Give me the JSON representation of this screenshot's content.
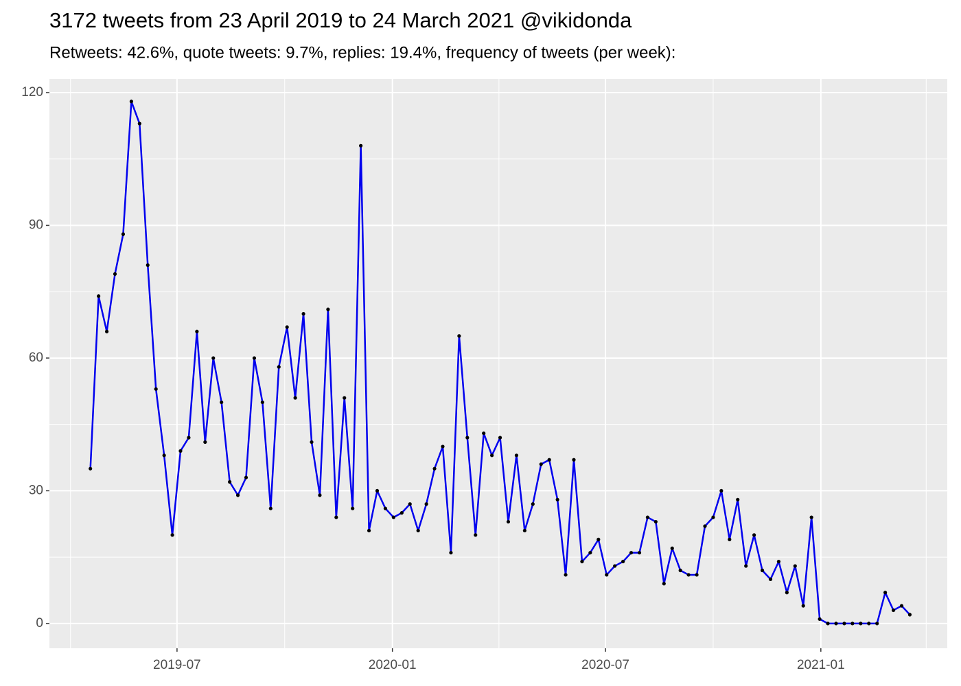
{
  "chart_data": {
    "type": "line",
    "title": "3172 tweets from 23 April 2019 to 24 March 2021 @vikidonda",
    "subtitle": "Retweets: 42.6%, quote tweets: 9.7%, replies: 19.4%, frequency of tweets (per week):",
    "x": [
      "2019-04-18",
      "2019-04-25",
      "2019-05-02",
      "2019-05-09",
      "2019-05-16",
      "2019-05-23",
      "2019-05-30",
      "2019-06-06",
      "2019-06-13",
      "2019-06-20",
      "2019-06-27",
      "2019-07-04",
      "2019-07-11",
      "2019-07-18",
      "2019-07-25",
      "2019-08-01",
      "2019-08-08",
      "2019-08-15",
      "2019-08-22",
      "2019-08-29",
      "2019-09-05",
      "2019-09-12",
      "2019-09-19",
      "2019-09-26",
      "2019-10-03",
      "2019-10-10",
      "2019-10-17",
      "2019-10-24",
      "2019-10-31",
      "2019-11-07",
      "2019-11-14",
      "2019-11-21",
      "2019-11-28",
      "2019-12-05",
      "2019-12-12",
      "2019-12-19",
      "2019-12-26",
      "2020-01-02",
      "2020-01-09",
      "2020-01-16",
      "2020-01-23",
      "2020-01-30",
      "2020-02-06",
      "2020-02-13",
      "2020-02-20",
      "2020-02-27",
      "2020-03-05",
      "2020-03-12",
      "2020-03-19",
      "2020-03-26",
      "2020-04-02",
      "2020-04-09",
      "2020-04-16",
      "2020-04-23",
      "2020-04-30",
      "2020-05-07",
      "2020-05-14",
      "2020-05-21",
      "2020-05-28",
      "2020-06-04",
      "2020-06-11",
      "2020-06-18",
      "2020-06-25",
      "2020-07-02",
      "2020-07-09",
      "2020-07-16",
      "2020-07-23",
      "2020-07-30",
      "2020-08-06",
      "2020-08-13",
      "2020-08-20",
      "2020-08-27",
      "2020-09-03",
      "2020-09-10",
      "2020-09-17",
      "2020-09-24",
      "2020-10-01",
      "2020-10-08",
      "2020-10-15",
      "2020-10-22",
      "2020-10-29",
      "2020-11-05",
      "2020-11-12",
      "2020-11-19",
      "2020-11-26",
      "2020-12-03",
      "2020-12-10",
      "2020-12-17",
      "2020-12-24",
      "2020-12-31",
      "2021-01-07",
      "2021-01-14",
      "2021-01-21",
      "2021-01-28",
      "2021-02-04",
      "2021-02-11",
      "2021-02-18",
      "2021-02-25",
      "2021-03-04",
      "2021-03-11",
      "2021-03-18"
    ],
    "series": [
      {
        "color": "#0000ee",
        "point_color": "#000000",
        "values": [
          35,
          74,
          66,
          79,
          88,
          118,
          113,
          81,
          53,
          38,
          20,
          39,
          42,
          66,
          41,
          60,
          50,
          32,
          29,
          33,
          60,
          50,
          26,
          58,
          67,
          51,
          70,
          41,
          29,
          71,
          24,
          51,
          26,
          108,
          21,
          30,
          26,
          24,
          25,
          27,
          21,
          27,
          35,
          40,
          16,
          65,
          42,
          20,
          43,
          38,
          42,
          23,
          38,
          21,
          27,
          36,
          37,
          28,
          11,
          37,
          14,
          16,
          19,
          11,
          13,
          14,
          16,
          16,
          24,
          23,
          9,
          17,
          12,
          11,
          11,
          22,
          24,
          30,
          19,
          28,
          13,
          20,
          12,
          10,
          14,
          7,
          13,
          4,
          24,
          1,
          0,
          0,
          0,
          0,
          0,
          0,
          0,
          7,
          3,
          4,
          2
        ]
      }
    ],
    "xlim": [
      "2019-03-14",
      "2021-04-19"
    ],
    "xticks": [
      {
        "value": "2019-07-01",
        "label": "2019-07"
      },
      {
        "value": "2020-01-01",
        "label": "2020-01"
      },
      {
        "value": "2020-07-01",
        "label": "2020-07"
      },
      {
        "value": "2021-01-01",
        "label": "2021-01"
      }
    ],
    "x_minor_ticks": [
      "2019-04-01",
      "2019-10-01",
      "2020-04-01",
      "2020-10-01",
      "2021-04-01"
    ],
    "ylim": [
      -5.6,
      123.1
    ],
    "yticks": [
      0,
      30,
      60,
      90,
      120
    ],
    "y_minor_ticks": [
      15,
      45,
      75,
      105
    ],
    "grid": true,
    "background": "#ebebeb"
  }
}
